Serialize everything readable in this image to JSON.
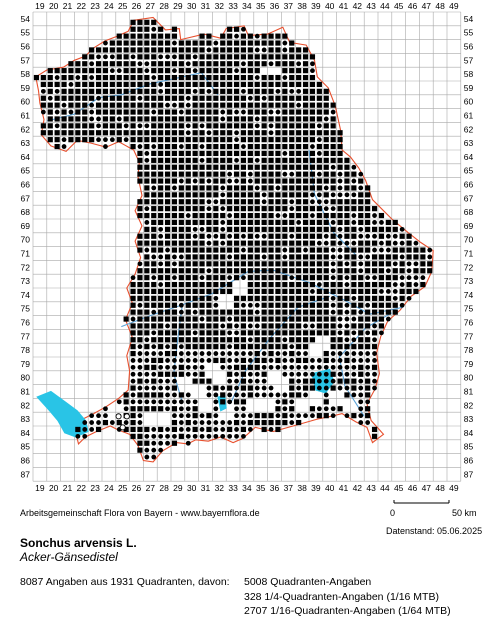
{
  "map": {
    "x_labels": [
      "19",
      "20",
      "21",
      "22",
      "23",
      "24",
      "25",
      "26",
      "27",
      "28",
      "29",
      "30",
      "31",
      "32",
      "33",
      "34",
      "35",
      "36",
      "37",
      "38",
      "39",
      "40",
      "41",
      "42",
      "43",
      "44",
      "45",
      "46",
      "47",
      "48",
      "49"
    ],
    "y_labels": [
      "54",
      "55",
      "56",
      "57",
      "58",
      "59",
      "60",
      "61",
      "62",
      "63",
      "64",
      "65",
      "66",
      "67",
      "68",
      "69",
      "70",
      "71",
      "72",
      "73",
      "74",
      "75",
      "76",
      "77",
      "78",
      "79",
      "80",
      "81",
      "82",
      "83",
      "84",
      "85",
      "86",
      "87"
    ],
    "colors": {
      "grid": "#a9a9a9",
      "border": "#e8502e",
      "river": "#5ba3d8",
      "lake": "#29c4e6",
      "symbol": "#000000"
    },
    "legend_symbols": [
      "filled-square",
      "filled-circle",
      "open-circle"
    ]
  },
  "footer": {
    "credit": "Arbeitsgemeinschaft Flora von Bayern - www.bayernflora.de",
    "scale_zero": "0",
    "scale_fifty": "50 km",
    "datestand": "Datenstand: 05.06.2025"
  },
  "species": {
    "scientific_name": "Sonchus arvensis L.",
    "common_name": "Acker-Gänsedistel"
  },
  "stats": {
    "total": "8087 Angaben aus 1931 Quadranten, davon:",
    "rows": [
      "5008 Quadranten-Angaben",
      "328 1/4-Quadranten-Angaben (1/16 MTB)",
      "2707 1/16-Quadranten-Angaben (1/64 MTB)"
    ]
  }
}
